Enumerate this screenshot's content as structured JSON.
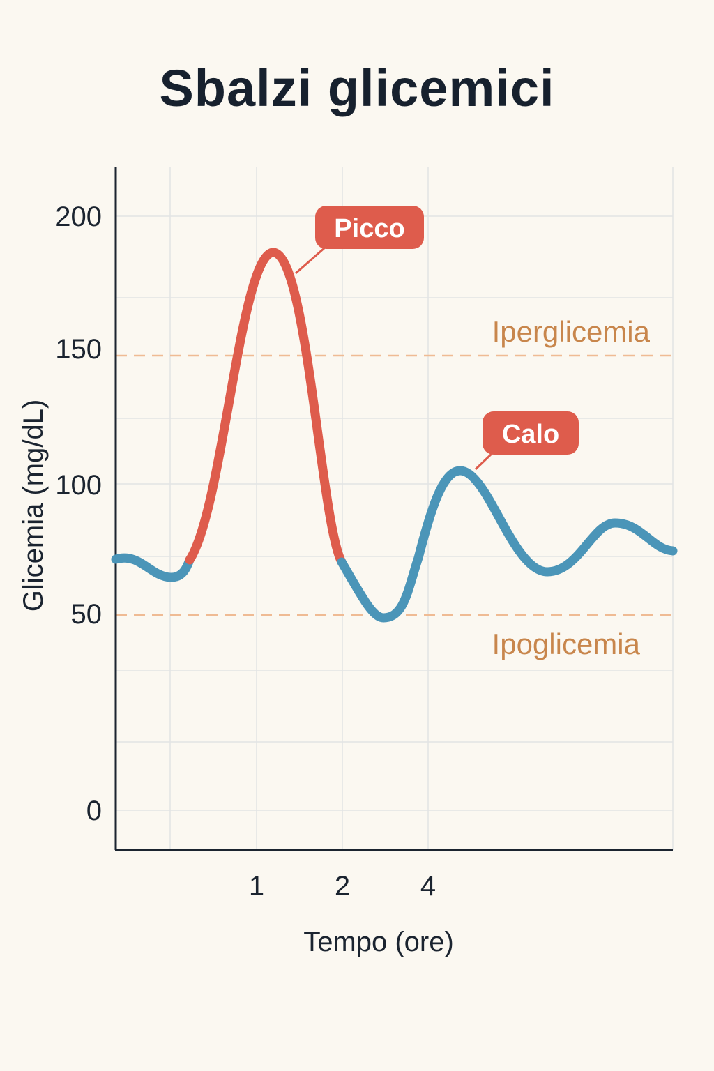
{
  "chart_data": {
    "type": "line",
    "title": "Sbalzi glicemici",
    "xlabel": "Tempo (ore)",
    "ylabel": "Glicemia (mg/dL)",
    "yticks": [
      "0",
      "50",
      "100",
      "150",
      "200"
    ],
    "xticks": [
      "1",
      "2",
      "4"
    ],
    "grid": true,
    "reference_lines": [
      {
        "label": "Iperglicemia",
        "value": 150
      },
      {
        "label": "Ipoglicemia",
        "value": 50
      }
    ],
    "annotations": [
      {
        "label": "Picco"
      },
      {
        "label": "Calo"
      }
    ],
    "series": [
      {
        "color_rise": "#de5c4c",
        "color_fall": "#4b95b8",
        "points_y": [
          72,
          65,
          73,
          135,
          187,
          150,
          72,
          55,
          50,
          65,
          105,
          88,
          67,
          70,
          85,
          75,
          70
        ]
      }
    ],
    "colors": {
      "rise": "#de5c4c",
      "fall": "#4b95b8",
      "reference": "#efbb94",
      "reference_text": "#c8864c",
      "grid": "#e2e4e4",
      "axis": "#1b2430"
    }
  }
}
